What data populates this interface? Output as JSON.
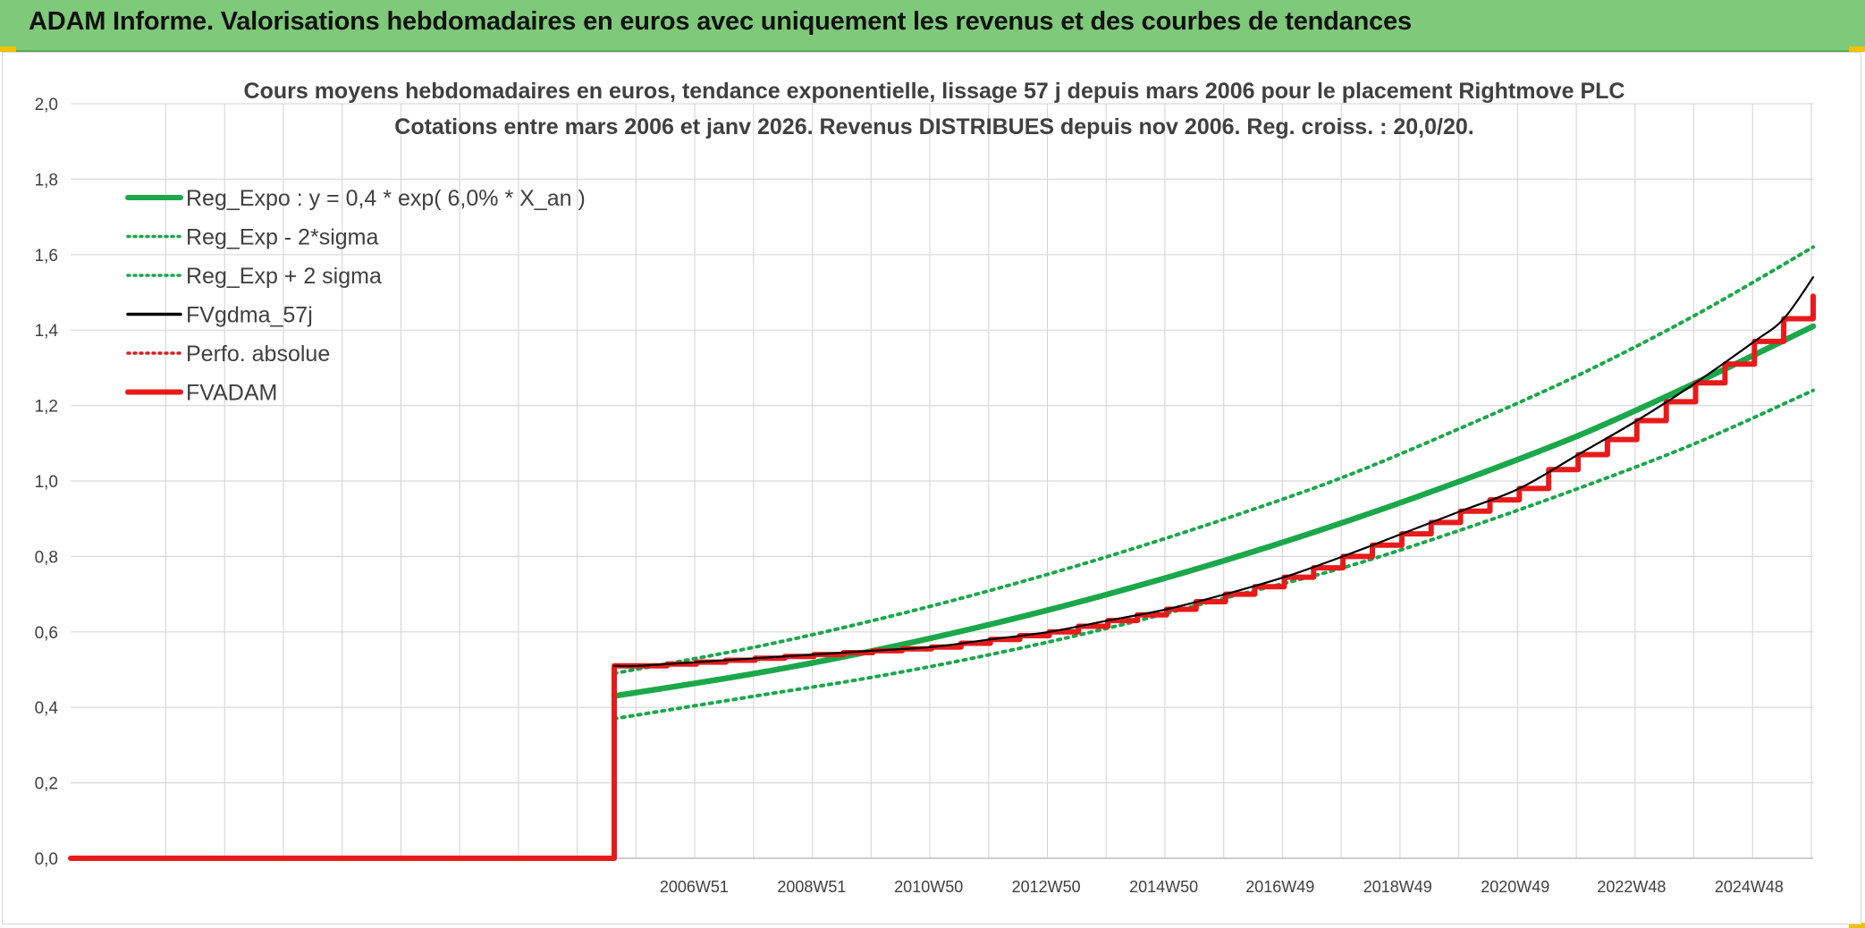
{
  "header": {
    "title": "ADAM Informe. Valorisations hebdomadaires en euros avec uniquement les revenus et des courbes de tendances"
  },
  "colors": {
    "banner": "#7ec97a",
    "trend_green": "#1aa84a",
    "fvadam_red": "#e81a1a",
    "fvgdma_black": "#000000",
    "perfo_red": "#d22020",
    "grid": "#d9d9d9"
  },
  "chart_data": {
    "type": "line",
    "title_line1": "Cours moyens hebdomadaires en euros, tendance exponentielle, lissage 57 j depuis mars 2006 pour le placement Rightmove PLC",
    "title_line2": "Cotations entre mars 2006 et janv 2026. Revenus DISTRIBUES depuis nov 2006. Reg. croiss. : 20,0/20.",
    "ylim": [
      0,
      2.0
    ],
    "yticks": [
      "0,0",
      "0,2",
      "0,4",
      "0,6",
      "0,8",
      "1,0",
      "1,2",
      "1,4",
      "1,6",
      "1,8",
      "2,0"
    ],
    "xlim": [
      1996.35,
      2026.0
    ],
    "xticks": [
      {
        "label": "2006W51",
        "x": 2006.96
      },
      {
        "label": "2008W51",
        "x": 2008.96
      },
      {
        "label": "2010W50",
        "x": 2010.95
      },
      {
        "label": "2012W50",
        "x": 2012.95
      },
      {
        "label": "2014W50",
        "x": 2014.95
      },
      {
        "label": "2016W49",
        "x": 2016.93
      },
      {
        "label": "2018W49",
        "x": 2018.93
      },
      {
        "label": "2020W49",
        "x": 2020.93
      },
      {
        "label": "2022W48",
        "x": 2022.91
      },
      {
        "label": "2024W48",
        "x": 2024.91
      }
    ],
    "grid": true,
    "legend_position": "top-left",
    "legend": [
      {
        "key": "reg_expo",
        "label": "Reg_Expo : y = 0,4 * exp( 6,0% *  X_an )",
        "color": "#1aa84a",
        "style": "solid-thick"
      },
      {
        "key": "reg_minus",
        "label": "Reg_Exp - 2*sigma",
        "color": "#1aa84a",
        "style": "dotted"
      },
      {
        "key": "reg_plus",
        "label": "Reg_Exp + 2 sigma",
        "color": "#1aa84a",
        "style": "dotted"
      },
      {
        "key": "fvgdma",
        "label": "FVgdma_57j",
        "color": "#000000",
        "style": "solid"
      },
      {
        "key": "perfo",
        "label": "Perfo. absolue",
        "color": "#d22020",
        "style": "dotted"
      },
      {
        "key": "fvadam",
        "label": "FVADAM",
        "color": "#e81a1a",
        "style": "solid-thick"
      }
    ],
    "series": [
      {
        "key": "reg_expo",
        "x": [
          2005.6,
          2008,
          2010,
          2012,
          2014,
          2016,
          2018,
          2020,
          2022,
          2024,
          2026
        ],
        "y": [
          0.43,
          0.49,
          0.55,
          0.62,
          0.7,
          0.79,
          0.89,
          1.0,
          1.12,
          1.26,
          1.41
        ]
      },
      {
        "key": "reg_plus",
        "x": [
          2005.6,
          2008,
          2010,
          2012,
          2014,
          2016,
          2018,
          2020,
          2022,
          2024,
          2026
        ],
        "y": [
          0.49,
          0.56,
          0.63,
          0.71,
          0.8,
          0.9,
          1.01,
          1.14,
          1.28,
          1.44,
          1.62
        ]
      },
      {
        "key": "reg_minus",
        "x": [
          2005.6,
          2008,
          2010,
          2012,
          2014,
          2016,
          2018,
          2020,
          2022,
          2024,
          2026
        ],
        "y": [
          0.37,
          0.43,
          0.48,
          0.54,
          0.61,
          0.69,
          0.77,
          0.87,
          0.98,
          1.1,
          1.24
        ]
      },
      {
        "key": "fvadam",
        "step": true,
        "x": [
          1996.35,
          2005.6,
          2005.6,
          2006.0,
          2006.5,
          2007.0,
          2007.5,
          2008.0,
          2008.5,
          2009.0,
          2009.5,
          2010.0,
          2010.5,
          2011.0,
          2011.5,
          2012.0,
          2012.5,
          2013.0,
          2013.5,
          2014.0,
          2014.5,
          2015.0,
          2015.5,
          2016.0,
          2016.5,
          2017.0,
          2017.5,
          2018.0,
          2018.5,
          2019.0,
          2019.5,
          2020.0,
          2020.5,
          2021.0,
          2021.5,
          2022.0,
          2022.5,
          2023.0,
          2023.5,
          2024.0,
          2024.5,
          2025.0,
          2025.5,
          2026.0
        ],
        "y": [
          0.0,
          0.0,
          0.51,
          0.51,
          0.515,
          0.52,
          0.525,
          0.53,
          0.535,
          0.54,
          0.545,
          0.55,
          0.555,
          0.56,
          0.57,
          0.58,
          0.59,
          0.6,
          0.615,
          0.63,
          0.645,
          0.66,
          0.68,
          0.7,
          0.72,
          0.745,
          0.77,
          0.8,
          0.83,
          0.86,
          0.89,
          0.92,
          0.95,
          0.98,
          1.03,
          1.07,
          1.11,
          1.16,
          1.21,
          1.26,
          1.31,
          1.37,
          1.43,
          1.49
        ]
      },
      {
        "key": "fvgdma",
        "x": [
          2005.6,
          2006.0,
          2007.0,
          2008.0,
          2009.0,
          2010.0,
          2011.0,
          2012.0,
          2013.0,
          2014.0,
          2015.0,
          2016.0,
          2017.0,
          2018.0,
          2019.0,
          2020.0,
          2021.0,
          2022.0,
          2023.0,
          2024.0,
          2025.0,
          2025.5,
          2026.0
        ],
        "y": [
          0.51,
          0.51,
          0.52,
          0.53,
          0.54,
          0.55,
          0.56,
          0.58,
          0.6,
          0.63,
          0.66,
          0.7,
          0.745,
          0.8,
          0.86,
          0.92,
          0.98,
          1.07,
          1.16,
          1.26,
          1.37,
          1.43,
          1.54
        ]
      }
    ]
  }
}
